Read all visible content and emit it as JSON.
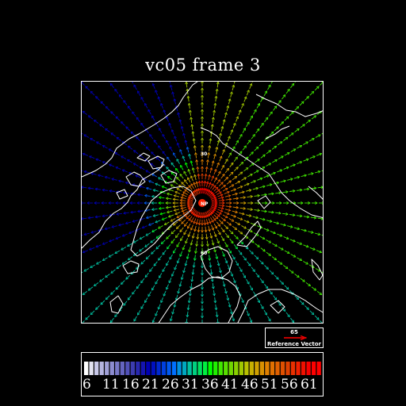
{
  "title": "vc05 frame 3",
  "map": {
    "pole_label": "NP",
    "lat_labels": [
      "30",
      "60"
    ],
    "pole_color": "#ff2000",
    "coast_color": "#ffffff"
  },
  "reference_vector": {
    "value": "65",
    "label": "Reference Vector",
    "color": "#ff0000"
  },
  "colorbar": {
    "tick_labels": [
      "6",
      "11",
      "16",
      "21",
      "26",
      "31",
      "36",
      "41",
      "46",
      "51",
      "56",
      "61"
    ],
    "colors": [
      "#ffffff",
      "#e2e2f0",
      "#c8c8e8",
      "#b4b4e0",
      "#a0a0d8",
      "#8c8cd0",
      "#7878c8",
      "#6464c0",
      "#5050b8",
      "#3c3cb0",
      "#2828b0",
      "#1414b0",
      "#0000b4",
      "#0010c0",
      "#0028d0",
      "#0040e0",
      "#0058f0",
      "#0070ff",
      "#0090e0",
      "#00a8c0",
      "#00c0a0",
      "#00d080",
      "#00e060",
      "#00f040",
      "#00ff00",
      "#20f000",
      "#40e800",
      "#58e000",
      "#70d800",
      "#88d000",
      "#a0c800",
      "#b8c000",
      "#c8b000",
      "#d0a000",
      "#d89000",
      "#e08000",
      "#e07000",
      "#e06000",
      "#e05000",
      "#e04000",
      "#e83000",
      "#f02000",
      "#f01000",
      "#f80000",
      "#ff0000",
      "#ff0000"
    ]
  }
}
